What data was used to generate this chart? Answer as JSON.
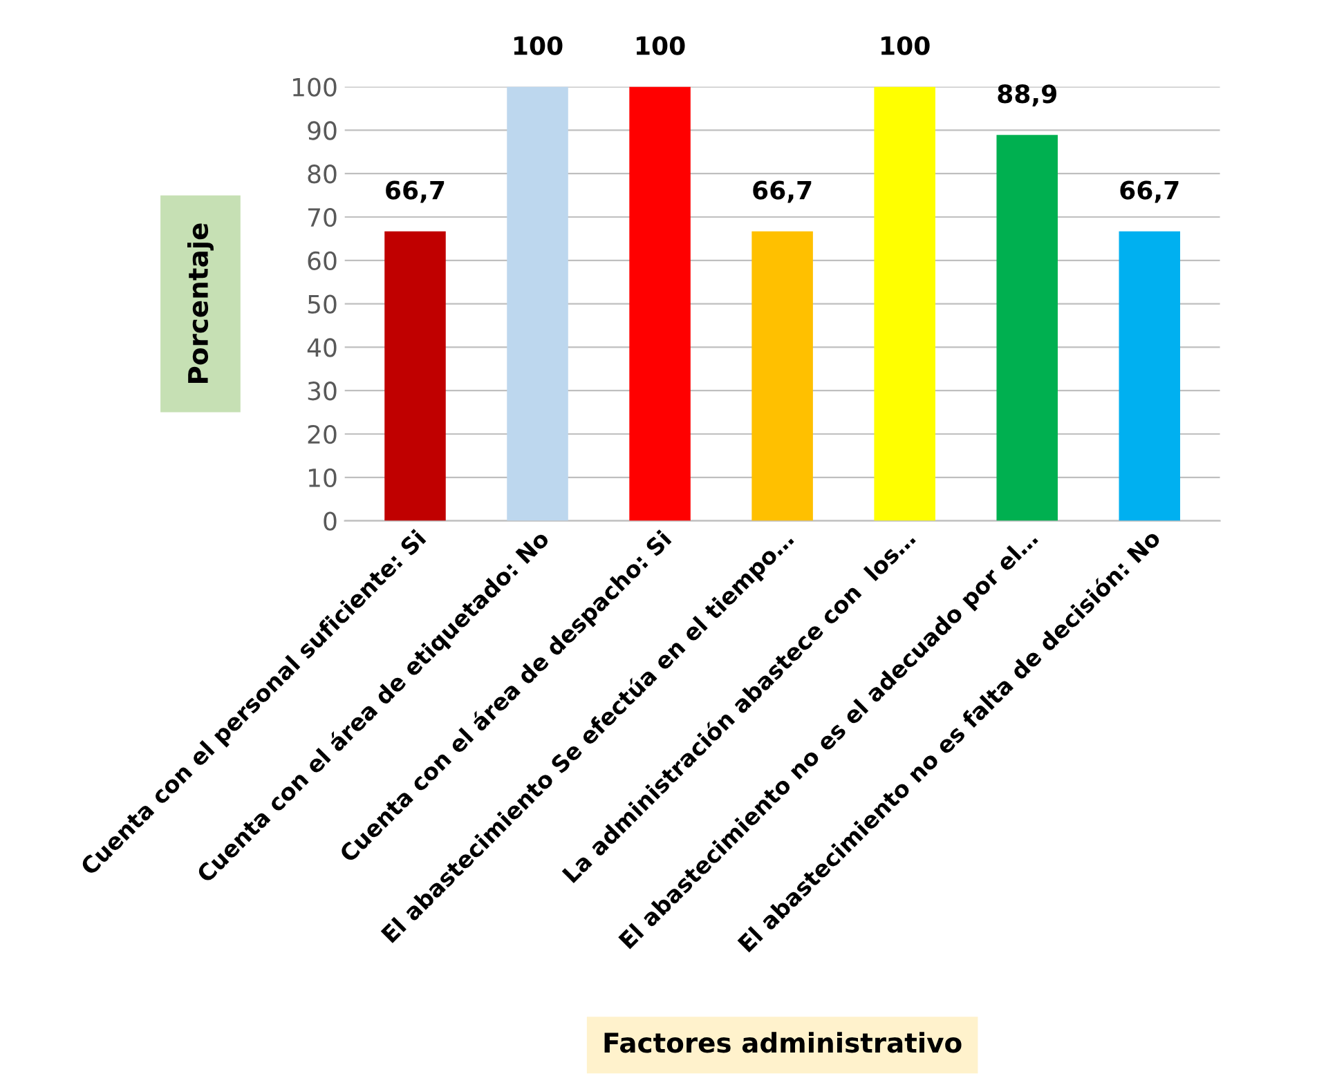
{
  "chart_data": {
    "type": "bar",
    "categories": [
      "Cuenta con el personal suficiente: Si",
      "Cuenta con el área de etiquetado: No",
      "Cuenta con el área de despacho: Si",
      "El abastecimiento Se efectúa en el tiempo…",
      "La administración abastece con  los…",
      "El abastecimiento no es el adecuado por el…",
      "El abastecimiento no es falta de decisión: No"
    ],
    "values": [
      66.7,
      100,
      100,
      66.7,
      100,
      88.9,
      66.7
    ],
    "value_labels": [
      "66,7",
      "100",
      "100",
      "66,7",
      "100",
      "88,9",
      "66,7"
    ],
    "colors": [
      "#c00000",
      "#bdd7ee",
      "#ff0000",
      "#ffc000",
      "#ffff00",
      "#00b050",
      "#00b0f0"
    ],
    "ylabel": "Porcentaje",
    "xlabel": "Factores administrativo",
    "ylim": [
      0,
      100
    ],
    "yticks": [
      0,
      10,
      20,
      30,
      40,
      50,
      60,
      70,
      80,
      90,
      100
    ],
    "grid": "y"
  }
}
